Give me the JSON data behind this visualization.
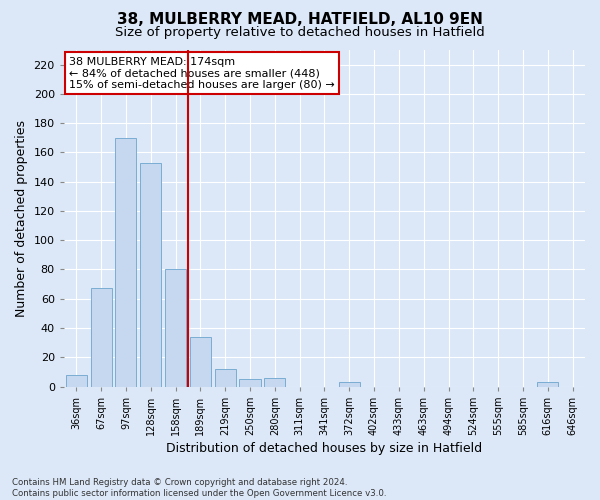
{
  "title1": "38, MULBERRY MEAD, HATFIELD, AL10 9EN",
  "title2": "Size of property relative to detached houses in Hatfield",
  "xlabel": "Distribution of detached houses by size in Hatfield",
  "ylabel": "Number of detached properties",
  "categories": [
    "36sqm",
    "67sqm",
    "97sqm",
    "128sqm",
    "158sqm",
    "189sqm",
    "219sqm",
    "250sqm",
    "280sqm",
    "311sqm",
    "341sqm",
    "372sqm",
    "402sqm",
    "433sqm",
    "463sqm",
    "494sqm",
    "524sqm",
    "555sqm",
    "585sqm",
    "616sqm",
    "646sqm"
  ],
  "values": [
    8,
    67,
    170,
    153,
    80,
    34,
    12,
    5,
    6,
    0,
    0,
    3,
    0,
    0,
    0,
    0,
    0,
    0,
    0,
    3,
    0
  ],
  "bar_color": "#c5d8f0",
  "bar_edge_color": "#7aadd4",
  "vline_x": 4.5,
  "vline_color": "#cc0000",
  "annotation_text": "38 MULBERRY MEAD: 174sqm\n← 84% of detached houses are smaller (448)\n15% of semi-detached houses are larger (80) →",
  "annotation_box_color": "#ffffff",
  "annotation_box_edge": "#cc0000",
  "ylim": [
    0,
    230
  ],
  "yticks": [
    0,
    20,
    40,
    60,
    80,
    100,
    120,
    140,
    160,
    180,
    200,
    220
  ],
  "footnote": "Contains HM Land Registry data © Crown copyright and database right 2024.\nContains public sector information licensed under the Open Government Licence v3.0.",
  "bg_color": "#dce8f8",
  "plot_bg_color": "#dce8f8",
  "grid_color": "#ffffff",
  "title1_fontsize": 11,
  "title2_fontsize": 9.5,
  "xlabel_fontsize": 9,
  "ylabel_fontsize": 9
}
